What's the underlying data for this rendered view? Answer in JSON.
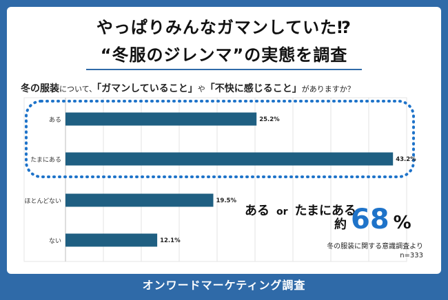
{
  "title_line1": "やっぱりみんなガマンしていた⁉",
  "title_line2": "“冬服のジレンマ”の実態を調査",
  "question": {
    "p1": "冬の服装",
    "p2": "について、",
    "p3": "「ガマンしていること」",
    "p4": "や",
    "p5": "「不快に感じること」",
    "p6": "がありますか？"
  },
  "chart_data": {
    "type": "bar",
    "orientation": "horizontal",
    "categories": [
      "ある",
      "たまにある",
      "ほとんどない",
      "ない"
    ],
    "values": [
      25.2,
      43.2,
      19.5,
      12.1
    ],
    "value_labels": [
      "25.2%",
      "43.2%",
      "19.5%",
      "12.1%"
    ],
    "xlim": [
      0,
      45
    ],
    "grid": true,
    "bar_color": "#1f5f82",
    "highlight_color": "#1e73c9",
    "highlighted_categories": [
      "ある",
      "たまにある"
    ]
  },
  "summary": {
    "a": "ある",
    "or": "or",
    "b": "たまにある",
    "approx": "約",
    "number": "68",
    "unit": "%"
  },
  "source": {
    "line1": "冬の服装に関する意識調査より",
    "line2": "n=333"
  },
  "footer": "オンワードマーケティング調査"
}
